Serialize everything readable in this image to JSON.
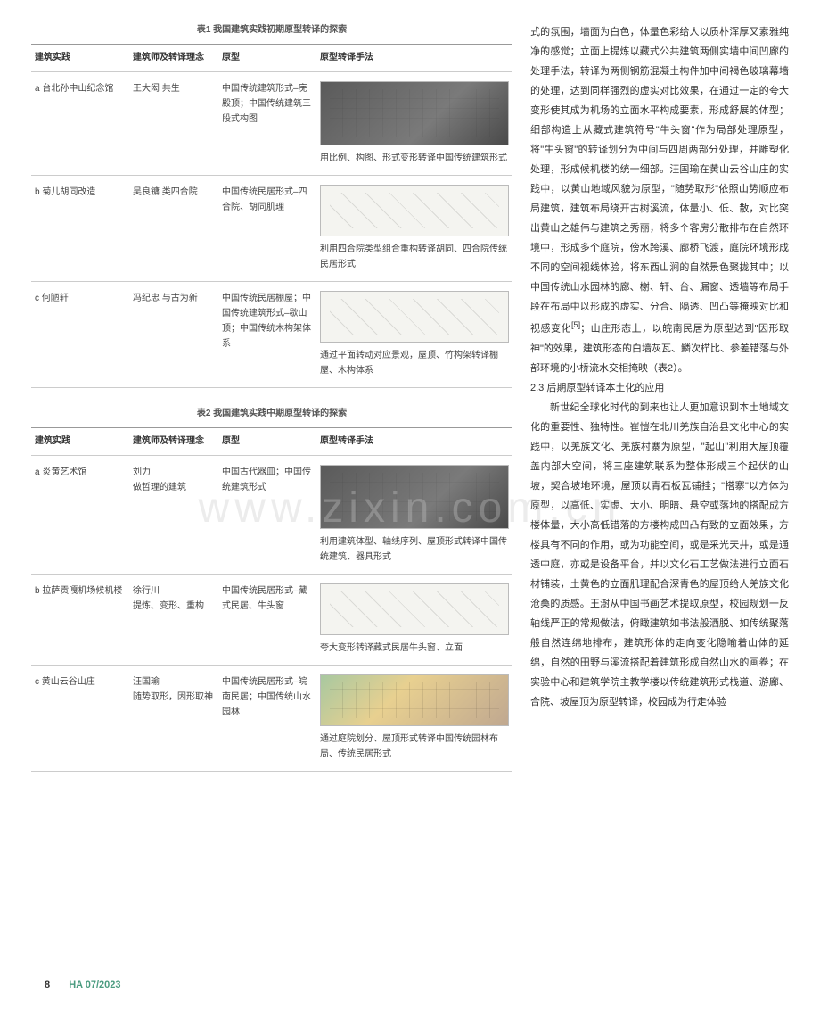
{
  "table1": {
    "title": "表1  我国建筑实践初期原型转译的探索",
    "headers": [
      "建筑实践",
      "建筑师及转译理念",
      "原型",
      "原型转译手法"
    ],
    "rows": [
      {
        "practice": "a 台北孙中山纪念馆",
        "designer": "王大闳 共生",
        "proto": "中国传统建筑形式–庑殿顶；中国传统建筑三段式构图",
        "method": "用比例、构图、形式变形转译中国传统建筑形式"
      },
      {
        "practice": "b 菊儿胡同改造",
        "designer": "吴良镛 类四合院",
        "proto": "中国传统民居形式–四合院、胡同肌理",
        "method": "利用四合院类型组合重构转译胡同、四合院传统民居形式"
      },
      {
        "practice": "c 何陋轩",
        "designer": "冯纪忠 与古为新",
        "proto": "中国传统民居棚屋；中国传统建筑形式–歇山顶；中国传统木构架体系",
        "method": "通过平面转动对应景观，屋顶、竹构架转译棚屋、木构体系"
      }
    ]
  },
  "table2": {
    "title": "表2  我国建筑实践中期原型转译的探索",
    "headers": [
      "建筑实践",
      "建筑师及转译理念",
      "原型",
      "原型转译手法"
    ],
    "rows": [
      {
        "practice": "a 炎黄艺术馆",
        "designer": "刘力\n做哲理的建筑",
        "proto": "中国古代器皿；中国传统建筑形式",
        "method": "利用建筑体型、轴线序列、屋顶形式转译中国传统建筑、器具形式"
      },
      {
        "practice": "b 拉萨贡嘎机场候机楼",
        "designer": "徐行川\n提炼、变形、重构",
        "proto": "中国传统民居形式–藏式民居、牛头窗",
        "method": "夸大变形转译藏式民居牛头窗、立面"
      },
      {
        "practice": "c 黄山云谷山庄",
        "designer": "汪国瑜\n随势取形，因形取神",
        "proto": "中国传统民居形式–皖南民居；中国传统山水园林",
        "method": "通过庭院划分、屋顶形式转译中国传统园林布局、传统民居形式"
      }
    ]
  },
  "rightText": {
    "p1": "式的氛围，墙面为白色，体量色彩给人以质朴浑厚又素雅纯净的感觉；立面上提炼以藏式公共建筑两侧实墙中间凹廊的处理手法，转译为两侧钢筋混凝土构件加中间褐色玻璃幕墙的处理，达到同样强烈的虚实对比效果，在通过一定的夸大变形使其成为机场的立面水平构成要素，形成舒展的体型；细部构造上从藏式建筑符号\"牛头窗\"作为局部处理原型，将\"牛头窗\"的转译划分为中间与四周两部分处理，并雕塑化处理，形成候机楼的统一细部。汪国瑜在黄山云谷山庄的实践中，以黄山地域风貌为原型，\"随势取形\"依照山势顺应布局建筑，建筑布局绕开古树溪流，体量小、低、散，对比突出黄山之雄伟与建筑之秀丽，将多个客房分散排布在自然环境中，形成多个庭院，傍水跨溪、廊桥飞渡，庭院环境形成不同的空间视线体验，将东西山涧的自然景色聚拢其中；以中国传统山水园林的廊、榭、轩、台、漏窗、透墙等布局手段在布局中以形成的虚实、分合、隔透、凹凸等掩映对比和视感变化",
    "ref": "[5]",
    "p1b": "；山庄形态上，以皖南民居为原型达到\"因形取神\"的效果，建筑形态的白墙灰瓦、鳞次栉比、参差错落与外部环境的小桥流水交相掩映（表2）。",
    "section": "2.3 后期原型转译本土化的应用",
    "p2": "新世纪全球化时代的到来也让人更加意识到本土地域文化的重要性、独特性。崔愷在北川羌族自治县文化中心的实践中，以羌族文化、羌族村寨为原型，\"起山\"利用大屋顶覆盖内部大空间，将三座建筑联系为整体形成三个起伏的山坡，契合坡地环境，屋顶以青石板瓦铺挂；\"搭寨\"以方体为原型，以高低、实虚、大小、明暗、悬空或落地的搭配成方楼体量，大小高低错落的方楼构成凹凸有致的立面效果，方楼具有不同的作用，或为功能空间，或是采光天井，或是通透中庭，亦或是设备平台，并以文化石工艺做法进行立面石材铺装，土黄色的立面肌理配合深青色的屋顶给人羌族文化沧桑的质感。王澍从中国书画艺术提取原型，校园规划一反轴线严正的常规做法，俯瞰建筑如书法般洒脱、如传统聚落般自然连绵地排布，建筑形体的走向变化隐喻着山体的延绵，自然的田野与溪流搭配着建筑形成自然山水的画卷；在实验中心和建筑学院主教学楼以传统建筑形式栈道、游廊、合院、坡屋顶为原型转译，校园成为行走体验"
  },
  "footer": {
    "page": "8",
    "issue": "HA 07/2023"
  },
  "watermark": "www.zixin.com.cn"
}
